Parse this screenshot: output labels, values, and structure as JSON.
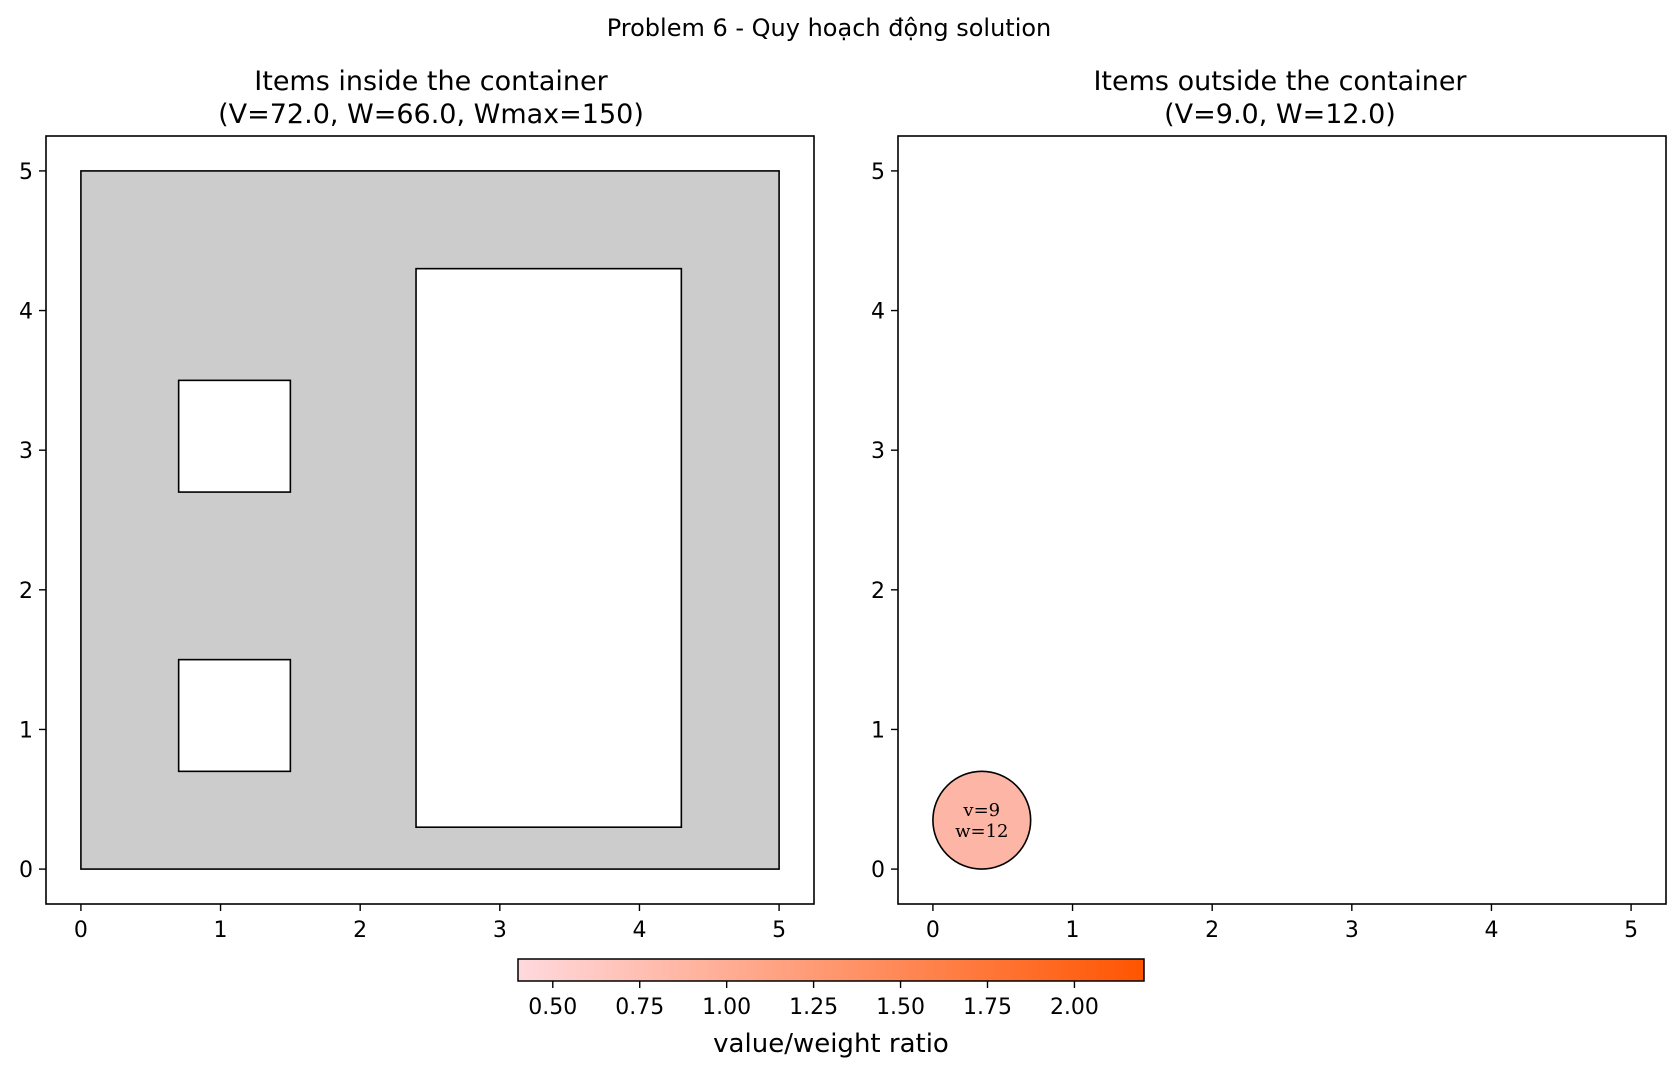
{
  "suptitle": "Problem 6 - Quy hoạch động solution",
  "chart_data": [
    {
      "type": "scatter",
      "title": "Items inside the container",
      "subtitle": "(V=72.0, W=66.0, Wmax=150)",
      "xlabel": "",
      "ylabel": "",
      "xlim": [
        -0.25,
        5.25
      ],
      "ylim": [
        -0.25,
        5.25
      ],
      "xticks": [
        0,
        1,
        2,
        3,
        4,
        5
      ],
      "yticks": [
        0,
        1,
        2,
        3,
        4,
        5
      ],
      "grid": false,
      "container": {
        "x0": 0,
        "y0": 0,
        "x1": 5,
        "y1": 5,
        "fill": "#cccccc"
      },
      "items": [
        {
          "shape": "rect",
          "x0": 0.7,
          "y0": 2.7,
          "x1": 1.5,
          "y1": 3.5,
          "fill": "#ffffff"
        },
        {
          "shape": "rect",
          "x0": 0.7,
          "y0": 0.7,
          "x1": 1.5,
          "y1": 1.5,
          "fill": "#ffffff"
        },
        {
          "shape": "rect",
          "x0": 2.4,
          "y0": 0.3,
          "x1": 4.3,
          "y1": 4.3,
          "fill": "#ffffff"
        }
      ]
    },
    {
      "type": "scatter",
      "title": "Items outside the container",
      "subtitle": "(V=9.0, W=12.0)",
      "xlabel": "",
      "ylabel": "",
      "xlim": [
        -0.25,
        5.25
      ],
      "ylim": [
        -0.25,
        5.25
      ],
      "xticks": [
        0,
        1,
        2,
        3,
        4,
        5
      ],
      "yticks": [
        0,
        1,
        2,
        3,
        4,
        5
      ],
      "grid": false,
      "items": [
        {
          "shape": "circle",
          "cx": 0.35,
          "cy": 0.35,
          "r": 0.35,
          "fill": "#fdb5a6",
          "v": 9,
          "w": 12,
          "label_v": "v=9",
          "label_w": "w=12"
        }
      ]
    }
  ],
  "colorbar": {
    "label": "value/weight ratio",
    "vmin": 0.4,
    "vmax": 2.2,
    "ticks": [
      0.5,
      0.75,
      1.0,
      1.25,
      1.5,
      1.75,
      2.0
    ],
    "tick_labels": [
      "0.50",
      "0.75",
      "1.00",
      "1.25",
      "1.50",
      "1.75",
      "2.00"
    ],
    "color_low": "#ffd9de",
    "color_high": "#ff5500",
    "placement": "bottom"
  }
}
